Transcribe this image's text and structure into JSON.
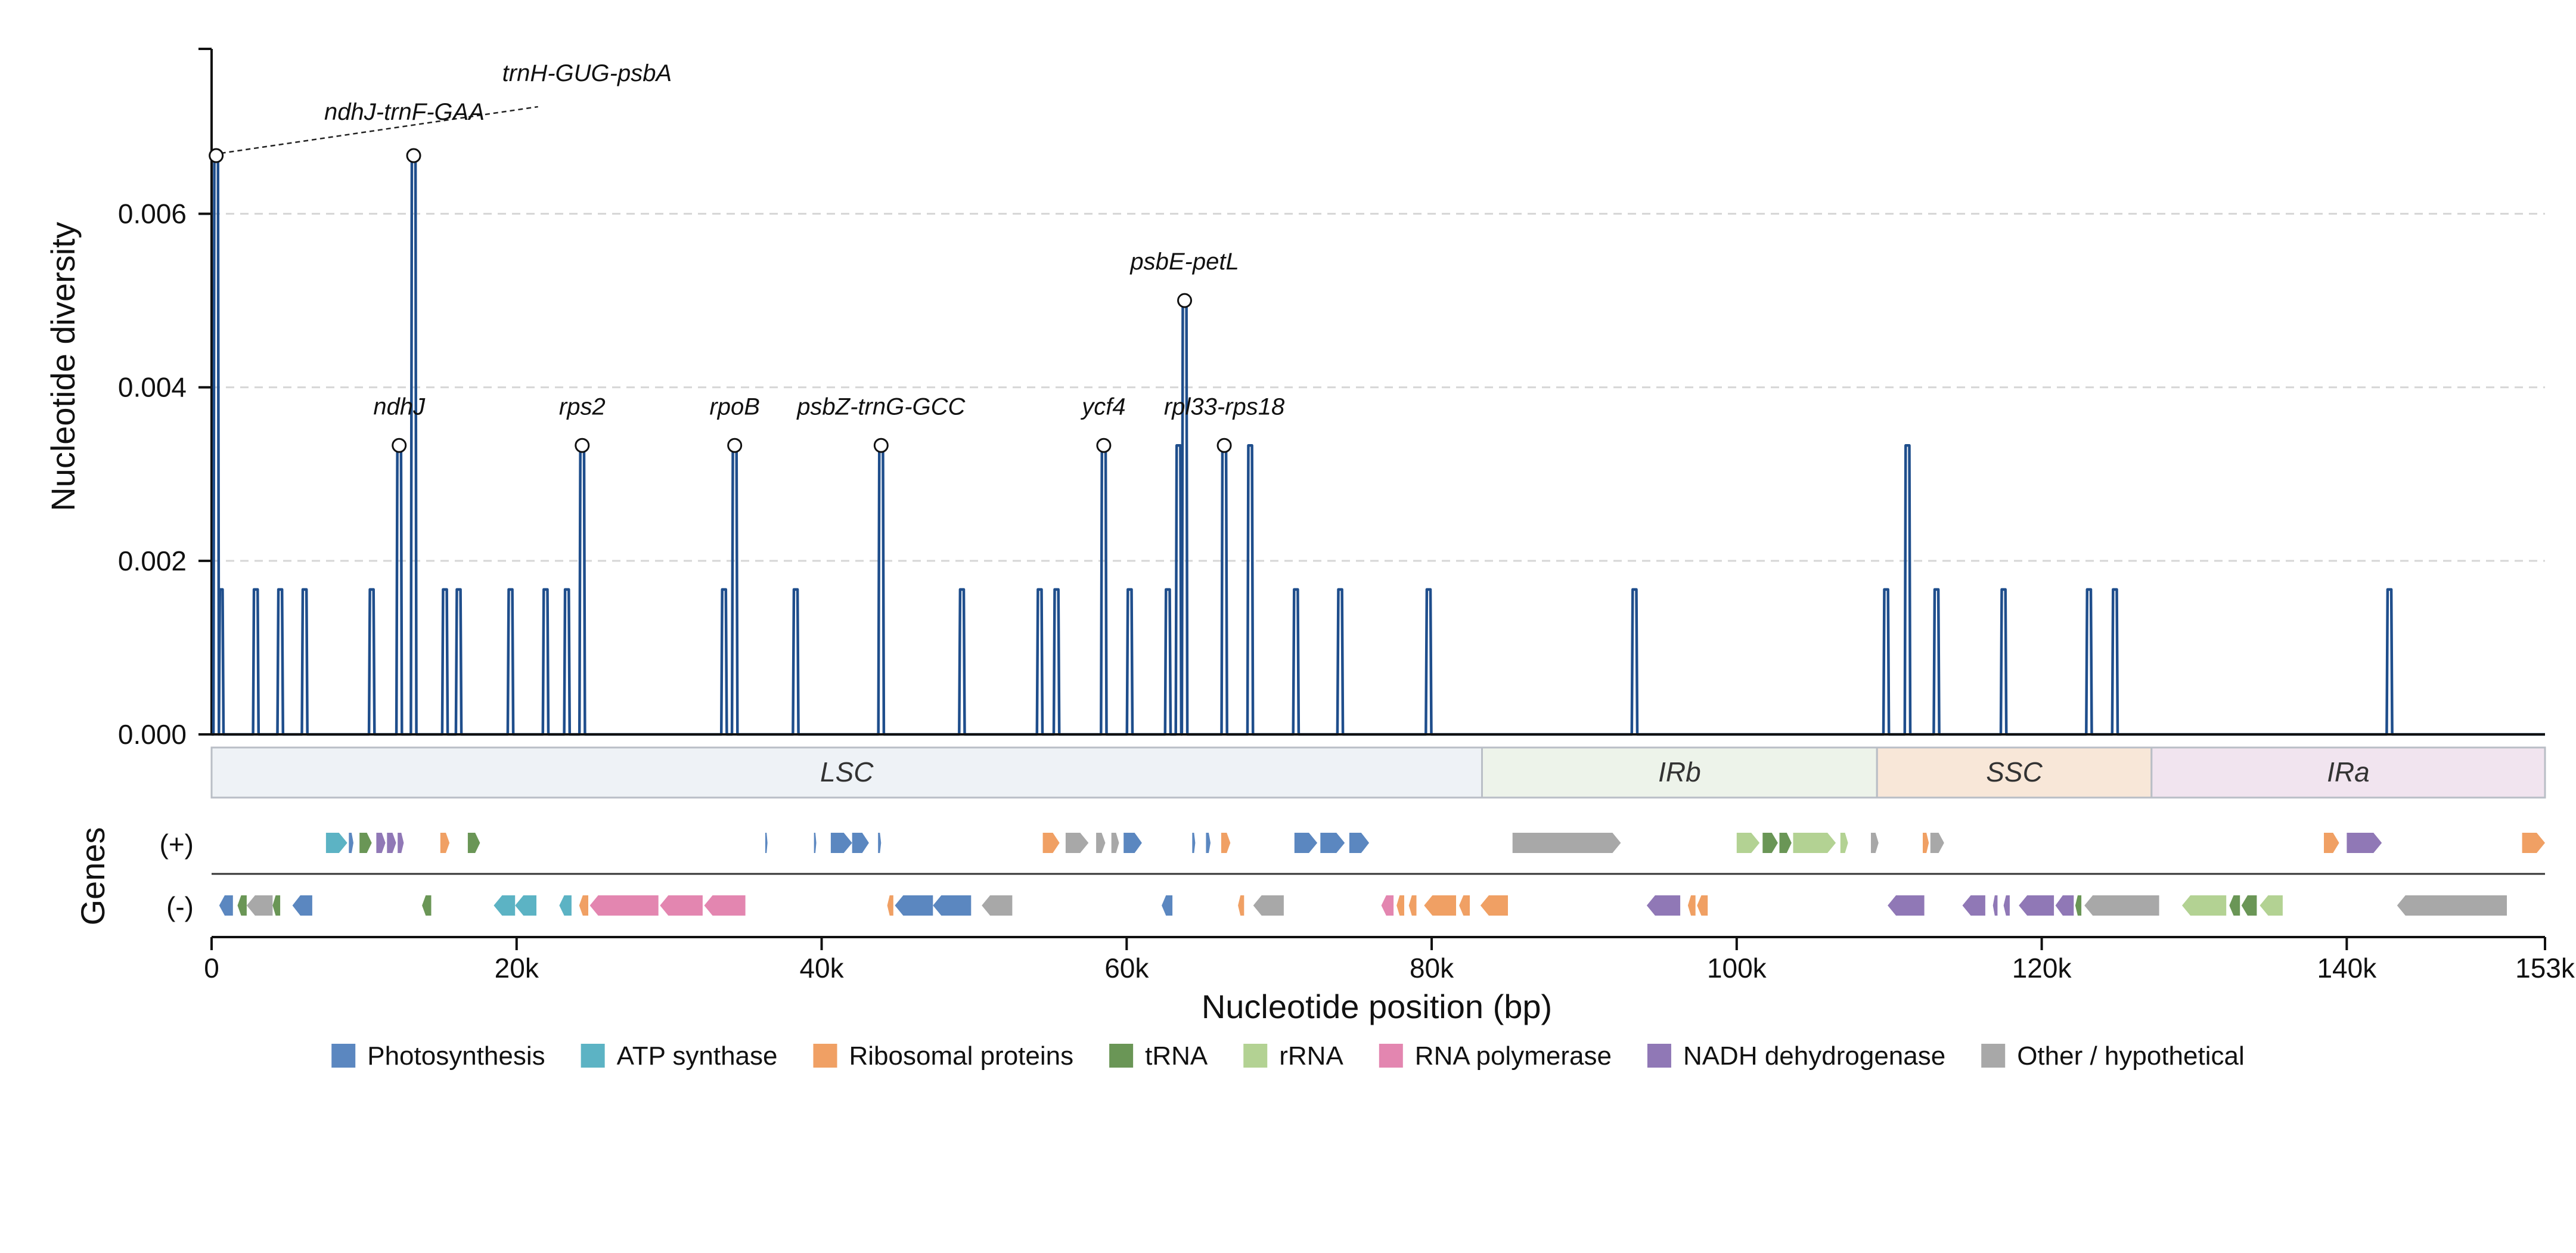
{
  "chart_data": {
    "type": "line",
    "ylabel": "Nucleotide diversity",
    "xlabel": "Nucleotide position (bp)",
    "genes_label": "Genes",
    "strand_plus_label": "(+)",
    "strand_minus_label": "(-)",
    "xlim": [
      0,
      153000
    ],
    "ylim": [
      0,
      0.0079
    ],
    "x_ticks": [
      {
        "value": 0,
        "label": "0"
      },
      {
        "value": 20000,
        "label": "20k"
      },
      {
        "value": 40000,
        "label": "40k"
      },
      {
        "value": 60000,
        "label": "60k"
      },
      {
        "value": 80000,
        "label": "80k"
      },
      {
        "value": 100000,
        "label": "100k"
      },
      {
        "value": 120000,
        "label": "120k"
      },
      {
        "value": 140000,
        "label": "140k"
      },
      {
        "value": 153000,
        "label": "153k"
      }
    ],
    "y_ticks": [
      {
        "value": 0,
        "label": "0.000"
      },
      {
        "value": 0.002,
        "label": "0.002"
      },
      {
        "value": 0.004,
        "label": "0.004"
      },
      {
        "value": 0.006,
        "label": "0.006"
      }
    ],
    "grid": "horizontal-dashed",
    "line_color": "#1f4e8c",
    "diversity_peaks": [
      [
        300,
        0.00667
      ],
      [
        600,
        0.00167
      ],
      [
        2900,
        0.00167
      ],
      [
        4500,
        0.00167
      ],
      [
        6100,
        0.00167
      ],
      [
        10500,
        0.00167
      ],
      [
        12300,
        0.00333
      ],
      [
        13250,
        0.00667
      ],
      [
        15300,
        0.00167
      ],
      [
        16200,
        0.00167
      ],
      [
        19600,
        0.00167
      ],
      [
        21900,
        0.00167
      ],
      [
        23300,
        0.00167
      ],
      [
        24300,
        0.00333
      ],
      [
        33600,
        0.00167
      ],
      [
        34300,
        0.00333
      ],
      [
        38300,
        0.00167
      ],
      [
        43900,
        0.00333
      ],
      [
        49200,
        0.00167
      ],
      [
        54300,
        0.00167
      ],
      [
        55400,
        0.00167
      ],
      [
        58500,
        0.00333
      ],
      [
        60200,
        0.00167
      ],
      [
        62700,
        0.00167
      ],
      [
        63400,
        0.00333
      ],
      [
        63800,
        0.005
      ],
      [
        66400,
        0.00333
      ],
      [
        68100,
        0.00333
      ],
      [
        71100,
        0.00167
      ],
      [
        74000,
        0.00167
      ],
      [
        79800,
        0.00167
      ],
      [
        93300,
        0.00167
      ],
      [
        109800,
        0.00167
      ],
      [
        111200,
        0.00333
      ],
      [
        113100,
        0.00167
      ],
      [
        117500,
        0.00167
      ],
      [
        123100,
        0.00167
      ],
      [
        124800,
        0.00167
      ],
      [
        142800,
        0.00167
      ]
    ],
    "annotations": [
      {
        "label": "trnH-GUG-psbA",
        "x": 300,
        "y": 0.00667
      },
      {
        "label": "ndhJ-trnF-GAA",
        "x": 13250,
        "y": 0.00667
      },
      {
        "label": "ndhJ",
        "x": 12300,
        "y": 0.00333
      },
      {
        "label": "rps2",
        "x": 24300,
        "y": 0.00333
      },
      {
        "label": "rpoB",
        "x": 34300,
        "y": 0.00333
      },
      {
        "label": "psbZ-trnG-GCC",
        "x": 43900,
        "y": 0.00333
      },
      {
        "label": "ycf4",
        "x": 58500,
        "y": 0.00333
      },
      {
        "label": "psbE-petL",
        "x": 63800,
        "y": 0.005
      },
      {
        "label": "rpl33-rps18",
        "x": 66400,
        "y": 0.00333
      }
    ],
    "regions": [
      {
        "name": "LSC",
        "start": 0,
        "end": 83300,
        "color": "#eef2f6"
      },
      {
        "name": "IRb",
        "start": 83300,
        "end": 109200,
        "color": "#edf3ea"
      },
      {
        "name": "SSC",
        "start": 109200,
        "end": 127200,
        "color": "#f8e7d8"
      },
      {
        "name": "IRa",
        "start": 127200,
        "end": 153000,
        "color": "#f1e4ef"
      }
    ],
    "categories": [
      {
        "key": "photo",
        "name": "Photosynthesis",
        "color": "#5b87c0"
      },
      {
        "key": "atp",
        "name": "ATP synthase",
        "color": "#5cb3c4"
      },
      {
        "key": "ribo",
        "name": "Ribosomal proteins",
        "color": "#f0a064"
      },
      {
        "key": "trna",
        "name": "tRNA",
        "color": "#6a9656"
      },
      {
        "key": "rrna",
        "name": "rRNA",
        "color": "#b3d293"
      },
      {
        "key": "rnapol",
        "name": "RNA polymerase",
        "color": "#e386b0"
      },
      {
        "key": "ndh",
        "name": "NADH dehydrogenase",
        "color": "#9078b6"
      },
      {
        "key": "other",
        "name": "Other / hypothetical",
        "color": "#a8a8a8"
      }
    ],
    "genes_plus": [
      {
        "start": 7500,
        "end": 8900,
        "cat": "atp"
      },
      {
        "start": 9000,
        "end": 9300,
        "cat": "photo"
      },
      {
        "start": 9700,
        "end": 10500,
        "cat": "trna"
      },
      {
        "start": 10800,
        "end": 11400,
        "cat": "ndh"
      },
      {
        "start": 11500,
        "end": 12100,
        "cat": "ndh"
      },
      {
        "start": 12200,
        "end": 12600,
        "cat": "ndh"
      },
      {
        "start": 15000,
        "end": 15600,
        "cat": "ribo"
      },
      {
        "start": 16800,
        "end": 17600,
        "cat": "trna"
      },
      {
        "start": 36300,
        "end": 36450,
        "cat": "photo"
      },
      {
        "start": 39500,
        "end": 39650,
        "cat": "photo"
      },
      {
        "start": 40600,
        "end": 42000,
        "cat": "photo"
      },
      {
        "start": 42000,
        "end": 43100,
        "cat": "photo"
      },
      {
        "start": 43700,
        "end": 43900,
        "cat": "photo"
      },
      {
        "start": 54500,
        "end": 55600,
        "cat": "ribo"
      },
      {
        "start": 56000,
        "end": 57500,
        "cat": "other"
      },
      {
        "start": 58000,
        "end": 58600,
        "cat": "other"
      },
      {
        "start": 59000,
        "end": 59500,
        "cat": "other"
      },
      {
        "start": 59800,
        "end": 61000,
        "cat": "photo"
      },
      {
        "start": 64300,
        "end": 64500,
        "cat": "photo"
      },
      {
        "start": 65200,
        "end": 65500,
        "cat": "photo"
      },
      {
        "start": 66200,
        "end": 66800,
        "cat": "ribo"
      },
      {
        "start": 71000,
        "end": 72500,
        "cat": "photo"
      },
      {
        "start": 72700,
        "end": 74300,
        "cat": "photo"
      },
      {
        "start": 74600,
        "end": 75900,
        "cat": "photo"
      },
      {
        "start": 85300,
        "end": 92400,
        "cat": "other"
      },
      {
        "start": 100000,
        "end": 101500,
        "cat": "rrna"
      },
      {
        "start": 101700,
        "end": 102700,
        "cat": "trna"
      },
      {
        "start": 102800,
        "end": 103600,
        "cat": "trna"
      },
      {
        "start": 103700,
        "end": 106500,
        "cat": "rrna"
      },
      {
        "start": 106800,
        "end": 107300,
        "cat": "rrna"
      },
      {
        "start": 108800,
        "end": 109300,
        "cat": "other"
      },
      {
        "start": 112200,
        "end": 112600,
        "cat": "ribo"
      },
      {
        "start": 112700,
        "end": 113600,
        "cat": "other"
      },
      {
        "start": 138500,
        "end": 139500,
        "cat": "ribo"
      },
      {
        "start": 140000,
        "end": 142300,
        "cat": "ndh"
      },
      {
        "start": 151500,
        "end": 153000,
        "cat": "ribo"
      }
    ],
    "genes_minus": [
      {
        "start": 500,
        "end": 1400,
        "cat": "photo"
      },
      {
        "start": 1700,
        "end": 2300,
        "cat": "trna"
      },
      {
        "start": 2300,
        "end": 4000,
        "cat": "other"
      },
      {
        "start": 4000,
        "end": 4500,
        "cat": "trna"
      },
      {
        "start": 5300,
        "end": 6600,
        "cat": "photo"
      },
      {
        "start": 13800,
        "end": 14400,
        "cat": "trna"
      },
      {
        "start": 18500,
        "end": 19900,
        "cat": "atp"
      },
      {
        "start": 19900,
        "end": 21300,
        "cat": "atp"
      },
      {
        "start": 22800,
        "end": 23600,
        "cat": "atp"
      },
      {
        "start": 24100,
        "end": 24700,
        "cat": "ribo"
      },
      {
        "start": 24800,
        "end": 29300,
        "cat": "rnapol"
      },
      {
        "start": 29400,
        "end": 32200,
        "cat": "rnapol"
      },
      {
        "start": 32300,
        "end": 35000,
        "cat": "rnapol"
      },
      {
        "start": 44300,
        "end": 44700,
        "cat": "ribo"
      },
      {
        "start": 44800,
        "end": 47300,
        "cat": "photo"
      },
      {
        "start": 47300,
        "end": 49800,
        "cat": "photo"
      },
      {
        "start": 50500,
        "end": 52500,
        "cat": "other"
      },
      {
        "start": 62300,
        "end": 63000,
        "cat": "photo"
      },
      {
        "start": 67300,
        "end": 67700,
        "cat": "ribo"
      },
      {
        "start": 68300,
        "end": 70300,
        "cat": "other"
      },
      {
        "start": 76700,
        "end": 77500,
        "cat": "rnapol"
      },
      {
        "start": 77700,
        "end": 78200,
        "cat": "ribo"
      },
      {
        "start": 78500,
        "end": 79000,
        "cat": "ribo"
      },
      {
        "start": 79500,
        "end": 81600,
        "cat": "ribo"
      },
      {
        "start": 81800,
        "end": 82500,
        "cat": "ribo"
      },
      {
        "start": 83200,
        "end": 85000,
        "cat": "ribo"
      },
      {
        "start": 94100,
        "end": 96300,
        "cat": "ndh"
      },
      {
        "start": 96800,
        "end": 97300,
        "cat": "ribo"
      },
      {
        "start": 97400,
        "end": 98100,
        "cat": "ribo"
      },
      {
        "start": 109900,
        "end": 112300,
        "cat": "ndh"
      },
      {
        "start": 114800,
        "end": 116300,
        "cat": "ndh"
      },
      {
        "start": 116800,
        "end": 117100,
        "cat": "ndh"
      },
      {
        "start": 117500,
        "end": 117900,
        "cat": "ndh"
      },
      {
        "start": 118500,
        "end": 120800,
        "cat": "ndh"
      },
      {
        "start": 120900,
        "end": 122100,
        "cat": "ndh"
      },
      {
        "start": 122200,
        "end": 122600,
        "cat": "trna"
      },
      {
        "start": 122800,
        "end": 127700,
        "cat": "other"
      },
      {
        "start": 129200,
        "end": 132100,
        "cat": "rrna"
      },
      {
        "start": 132300,
        "end": 133000,
        "cat": "trna"
      },
      {
        "start": 133100,
        "end": 134100,
        "cat": "trna"
      },
      {
        "start": 134300,
        "end": 135800,
        "cat": "rrna"
      },
      {
        "start": 143300,
        "end": 150500,
        "cat": "other"
      }
    ]
  }
}
